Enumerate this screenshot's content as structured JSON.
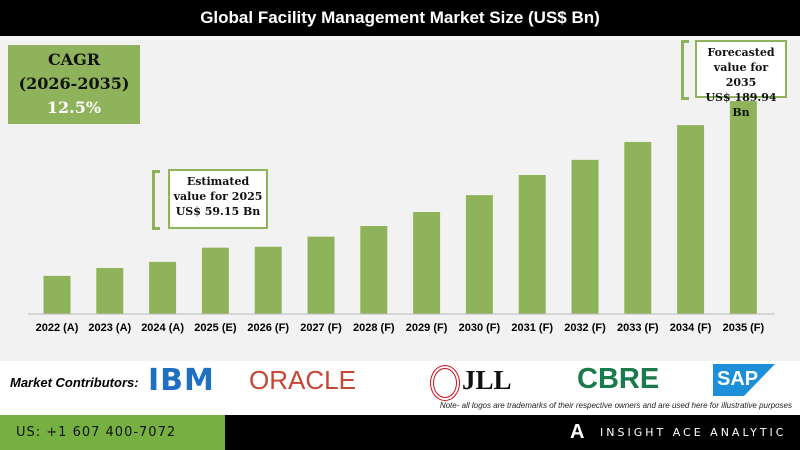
{
  "header": {
    "title": "Global Facility Management Market Size (US$ Bn)"
  },
  "cagr": {
    "label": "CAGR",
    "period": "(2026-2035)",
    "value": "12.5%"
  },
  "callouts": {
    "estimated": [
      "Estimated",
      "value for 2025",
      "US$ 59.15 Bn"
    ],
    "forecasted": [
      "Forecasted",
      "value for 2035",
      "US$ 189.94 Bn"
    ]
  },
  "chart_data": {
    "type": "bar",
    "title": "Global Facility Management Market Size (US$ Bn)",
    "categories": [
      "2022 (A)",
      "2023 (A)",
      "2024 (A)",
      "2025 (E)",
      "2026 (F)",
      "2027 (F)",
      "2028 (F)",
      "2029 (F)",
      "2030 (F)",
      "2031 (F)",
      "2032 (F)",
      "2033 (F)",
      "2034 (F)",
      "2035 (F)"
    ],
    "values": [
      34,
      41,
      46.5,
      59.15,
      60,
      69,
      78.5,
      91,
      106,
      124,
      137.5,
      153.5,
      168.5,
      189.94
    ],
    "ylim": [
      0,
      190
    ],
    "color": "#8fb35a",
    "grid": false
  },
  "contributors": {
    "label": "Market Contributors:",
    "logos": [
      "IBM",
      "ORACLE",
      "JLL",
      "CBRE",
      "SAP"
    ],
    "note": "Note- all logos are trademarks of their respective owners and are used here for illustrative purposes"
  },
  "footer": {
    "phone": "US: +1 607 400-7072",
    "brand": "INSIGHT ACE ANALYTIC"
  }
}
